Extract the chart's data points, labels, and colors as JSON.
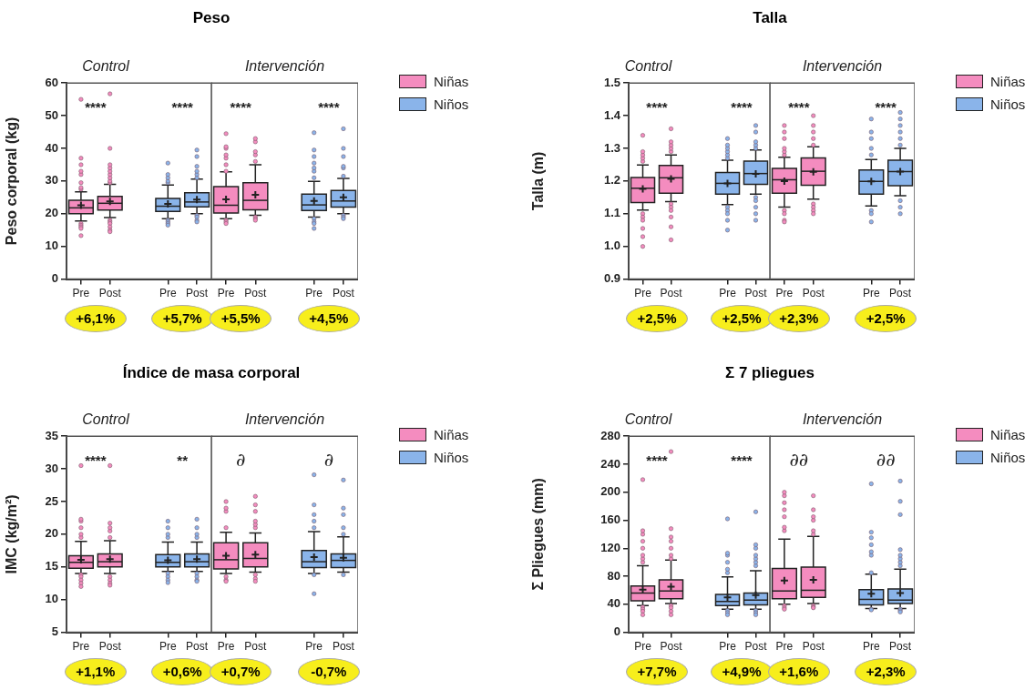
{
  "chart_data": [
    {
      "type": "box",
      "title": "Peso",
      "subtitle": "Control",
      "ylabel": "Peso corporal (kg)",
      "categories": [
        "Pre",
        "Post",
        null,
        "Pre",
        "Post"
      ],
      "ylim": [
        0,
        60
      ],
      "yticks": [
        0,
        10,
        20,
        30,
        40,
        50,
        60
      ],
      "annotations": [
        "****",
        "****",
        "+6,1%",
        "+5,7%"
      ],
      "series": [
        {
          "color": "#f48cbf",
          "boxes": [
            {
              "low": 17.8,
              "q1": 20.0,
              "median": 21.8,
              "q3": 24.1,
              "high": 26.7,
              "mean": 22.6,
              "outliers": [
                27.5,
                28,
                29.5,
                32,
                33,
                35,
                37,
                55,
                17,
                16.5,
                16,
                15.5,
                13.3
              ]
            },
            {
              "low": 18.8,
              "q1": 21.1,
              "median": 23.2,
              "q3": 25.3,
              "high": 29.0,
              "mean": 23.8,
              "outliers": [
                29.5,
                30,
                31,
                32,
                33,
                34,
                35,
                40,
                56.7,
                18,
                17.5,
                17,
                16,
                15,
                14.5
              ]
            },
            null,
            null,
            null
          ]
        },
        {
          "color": "#8ab4ea",
          "boxes": [
            null,
            null,
            null,
            {
              "low": 18.5,
              "q1": 20.7,
              "median": 22.3,
              "q3": 24.7,
              "high": 28.8,
              "mean": 23.0,
              "outliers": [
                29.5,
                30,
                31,
                32,
                35.5,
                18,
                17.5,
                17,
                16.5
              ]
            },
            {
              "low": 20.0,
              "q1": 22.1,
              "median": 23.6,
              "q3": 26.4,
              "high": 30.6,
              "mean": 24.3,
              "outliers": [
                31,
                32,
                33,
                34.5,
                37.5,
                39.5,
                19.5,
                19,
                18,
                17.5
              ]
            }
          ]
        }
      ]
    },
    {
      "type": "box",
      "subtitle": "Intervención",
      "categories": [
        "Pre",
        "Post",
        null,
        "Pre",
        "Post"
      ],
      "ylim": [
        0,
        60
      ],
      "tick_labels": "x",
      "legend": "right",
      "annotations": [
        "****",
        "****",
        "+5,5%",
        "+4,5%"
      ],
      "series": [
        {
          "name": "Niñas",
          "color": "#f48cbf",
          "boxes": [
            {
              "low": 18.5,
              "q1": 20.2,
              "median": 22.6,
              "q3": 28.3,
              "high": 32.8,
              "mean": 24.4,
              "outliers": [
                33,
                35,
                37,
                38,
                40,
                40.5,
                44.5,
                18,
                17.5,
                17
              ]
            },
            {
              "low": 19.5,
              "q1": 21.2,
              "median": 24.1,
              "q3": 29.5,
              "high": 35.0,
              "mean": 25.8,
              "outliers": [
                36,
                38,
                39,
                42,
                43,
                19,
                18.5,
                18
              ]
            },
            null,
            null,
            null
          ]
        },
        {
          "name": "Niños",
          "color": "#8ab4ea",
          "boxes": [
            null,
            null,
            null,
            {
              "low": 19.0,
              "q1": 21.0,
              "median": 22.7,
              "q3": 26.0,
              "high": 29.9,
              "mean": 23.9,
              "outliers": [
                31,
                33,
                34,
                35.5,
                37.5,
                39.5,
                44.8,
                18.5,
                17.5,
                17,
                15.5
              ]
            },
            {
              "low": 20.0,
              "q1": 22.0,
              "median": 23.9,
              "q3": 27.1,
              "high": 30.8,
              "mean": 25.0,
              "outliers": [
                31.5,
                34,
                34.5,
                37.5,
                40,
                46,
                19.5,
                19,
                18.5
              ]
            }
          ]
        }
      ]
    },
    {
      "type": "box",
      "title": "Talla",
      "subtitle": "Control",
      "ylabel": "Talla (m)",
      "categories": [
        "Pre",
        "Post",
        null,
        "Pre",
        "Post"
      ],
      "ylim": [
        0.9,
        1.5
      ],
      "yticks": [
        0.9,
        {
          "value": 1,
          "label": "1.0"
        },
        1.1,
        1.2,
        1.3,
        1.4,
        1.5
      ],
      "annotations": [
        "****",
        "****",
        "+2,5%",
        "+2,5%"
      ],
      "series": [
        {
          "color": "#f48cbf",
          "boxes": [
            {
              "low": 1.111,
              "q1": 1.134,
              "median": 1.178,
              "q3": 1.211,
              "high": 1.249,
              "mean": 1.176,
              "outliers": [
                1.26,
                1.27,
                1.28,
                1.29,
                1.34,
                1.1,
                1.09,
                1.08,
                1.055,
                1.03,
                1.0
              ]
            },
            {
              "low": 1.137,
              "q1": 1.163,
              "median": 1.21,
              "q3": 1.248,
              "high": 1.28,
              "mean": 1.207,
              "outliers": [
                1.29,
                1.3,
                1.31,
                1.32,
                1.36,
                1.13,
                1.12,
                1.11,
                1.09,
                1.06,
                1.02
              ]
            },
            null,
            null,
            null
          ]
        },
        {
          "color": "#8ab4ea",
          "boxes": [
            null,
            null,
            null,
            {
              "low": 1.128,
              "q1": 1.16,
              "median": 1.193,
              "q3": 1.226,
              "high": 1.264,
              "mean": 1.193,
              "outliers": [
                1.27,
                1.28,
                1.29,
                1.3,
                1.31,
                1.33,
                1.12,
                1.11,
                1.1,
                1.08,
                1.05
              ]
            },
            {
              "low": 1.16,
              "q1": 1.19,
              "median": 1.223,
              "q3": 1.261,
              "high": 1.295,
              "mean": 1.222,
              "outliers": [
                1.3,
                1.31,
                1.32,
                1.35,
                1.37,
                1.15,
                1.14,
                1.12,
                1.1,
                1.08
              ]
            }
          ]
        }
      ]
    },
    {
      "type": "box",
      "subtitle": "Intervención",
      "categories": [
        "Pre",
        "Post",
        null,
        "Pre",
        "Post"
      ],
      "ylim": [
        0.9,
        1.5
      ],
      "tick_labels": "x",
      "legend": "right",
      "annotations": [
        "****",
        "****",
        "+2,3%",
        "+2,5%"
      ],
      "series": [
        {
          "name": "Niñas",
          "color": "#f48cbf",
          "boxes": [
            {
              "low": 1.12,
              "q1": 1.163,
              "median": 1.204,
              "q3": 1.239,
              "high": 1.273,
              "mean": 1.2,
              "outliers": [
                1.28,
                1.29,
                1.3,
                1.33,
                1.35,
                1.37,
                1.11,
                1.1,
                1.08,
                1.075
              ]
            },
            {
              "low": 1.145,
              "q1": 1.187,
              "median": 1.23,
              "q3": 1.271,
              "high": 1.305,
              "mean": 1.228,
              "outliers": [
                1.31,
                1.33,
                1.35,
                1.37,
                1.4,
                1.13,
                1.12,
                1.11,
                1.1
              ]
            },
            null,
            null,
            null
          ]
        },
        {
          "name": "Niños",
          "color": "#8ab4ea",
          "boxes": [
            null,
            null,
            null,
            {
              "low": 1.124,
              "q1": 1.16,
              "median": 1.199,
              "q3": 1.234,
              "high": 1.266,
              "mean": 1.199,
              "outliers": [
                1.28,
                1.3,
                1.33,
                1.35,
                1.39,
                1.11,
                1.1,
                1.075
              ]
            },
            {
              "low": 1.155,
              "q1": 1.186,
              "median": 1.229,
              "q3": 1.264,
              "high": 1.3,
              "mean": 1.229,
              "outliers": [
                1.31,
                1.33,
                1.35,
                1.37,
                1.39,
                1.41,
                1.14,
                1.12,
                1.1
              ]
            }
          ]
        }
      ]
    },
    {
      "type": "box",
      "title": "Índice de masa corporal",
      "subtitle": "Control",
      "ylabel": "IMC (kg/m²)",
      "categories": [
        "Pre",
        "Post",
        null,
        "Pre",
        "Post"
      ],
      "ylim": [
        5,
        35
      ],
      "yticks": [
        5,
        10,
        15,
        20,
        25,
        30,
        35
      ],
      "annotations": [
        "****",
        "**",
        "+1,1%",
        "+0,6%"
      ],
      "series": [
        {
          "color": "#f48cbf",
          "boxes": [
            {
              "low": 14.0,
              "q1": 14.8,
              "median": 15.7,
              "q3": 16.7,
              "high": 18.9,
              "mean": 16.1,
              "outliers": [
                19.5,
                20,
                21,
                22,
                22.3,
                30.5,
                13.8,
                13.5,
                13,
                12.5,
                12
              ]
            },
            {
              "low": 14.0,
              "q1": 15.0,
              "median": 15.8,
              "q3": 17.0,
              "high": 19.0,
              "mean": 16.2,
              "outliers": [
                19.5,
                20.5,
                21,
                21.7,
                30.5,
                13.5,
                13,
                12.5,
                12.2
              ]
            },
            null,
            null,
            null
          ]
        },
        {
          "color": "#8ab4ea",
          "boxes": [
            null,
            null,
            null,
            {
              "low": 14.3,
              "q1": 15.0,
              "median": 15.7,
              "q3": 16.9,
              "high": 18.8,
              "mean": 16.0,
              "outliers": [
                19.5,
                20,
                21,
                22,
                14,
                13.5,
                13,
                12.6
              ]
            },
            {
              "low": 14.3,
              "q1": 15.0,
              "median": 15.8,
              "q3": 17.0,
              "high": 18.8,
              "mean": 16.2,
              "outliers": [
                19.5,
                20,
                21,
                22.3,
                14,
                13.5,
                13,
                12.8
              ]
            }
          ]
        }
      ]
    },
    {
      "type": "box",
      "subtitle": "Intervención",
      "categories": [
        "Pre",
        "Post",
        null,
        "Pre",
        "Post"
      ],
      "ylim": [
        5,
        35
      ],
      "tick_labels": "x",
      "legend": "right",
      "annotations": [
        "∂",
        "∂",
        "+0,7%",
        "-0,7%"
      ],
      "series": [
        {
          "name": "Niñas",
          "color": "#f48cbf",
          "boxes": [
            {
              "low": 14.0,
              "q1": 14.7,
              "median": 16.1,
              "q3": 18.7,
              "high": 20.3,
              "mean": 16.7,
              "outliers": [
                21,
                23.5,
                24,
                25,
                13.5,
                13,
                12.8
              ]
            },
            {
              "low": 14.2,
              "q1": 15.0,
              "median": 16.3,
              "q3": 18.7,
              "high": 20.2,
              "mean": 16.9,
              "outliers": [
                21,
                21.5,
                22,
                23.5,
                24.5,
                25.8,
                13.8,
                13.2,
                12.8
              ]
            },
            null,
            null,
            null
          ]
        },
        {
          "name": "Niños",
          "color": "#8ab4ea",
          "boxes": [
            null,
            null,
            null,
            {
              "low": 14.0,
              "q1": 14.9,
              "median": 15.8,
              "q3": 17.5,
              "high": 20.4,
              "mean": 16.5,
              "outliers": [
                21,
                22,
                23,
                24.5,
                29.1,
                13.8,
                10.9
              ]
            },
            {
              "low": 14.2,
              "q1": 14.9,
              "median": 16.0,
              "q3": 17.0,
              "high": 19.6,
              "mean": 16.4,
              "outliers": [
                20,
                21,
                23,
                24,
                28.3,
                13.8
              ]
            }
          ]
        }
      ]
    },
    {
      "type": "box",
      "title": "Σ 7 pliegues",
      "subtitle": "Control",
      "ylabel": "Σ Pliegues (mm)",
      "categories": [
        "Pre",
        "Post",
        null,
        "Pre",
        "Post"
      ],
      "ylim": [
        0,
        280
      ],
      "yticks": [
        0,
        40,
        80,
        120,
        160,
        200,
        240,
        280
      ],
      "annotations": [
        "****",
        "****",
        "+7,7%",
        "+4,9%"
      ],
      "series": [
        {
          "color": "#f48cbf",
          "boxes": [
            {
              "low": 38,
              "q1": 45,
              "median": 56,
              "q3": 66,
              "high": 95,
              "mean": 61,
              "outliers": [
                100,
                105,
                110,
                120,
                130,
                140,
                145,
                218,
                36,
                33,
                30,
                25
              ]
            },
            {
              "low": 41,
              "q1": 48,
              "median": 59,
              "q3": 75,
              "high": 103,
              "mean": 65,
              "outliers": [
                105,
                110,
                120,
                130,
                136,
                148,
                258,
                38,
                35,
                30,
                25
              ]
            },
            null,
            null,
            null
          ]
        },
        {
          "color": "#8ab4ea",
          "boxes": [
            null,
            null,
            null,
            {
              "low": 33,
              "q1": 38,
              "median": 44,
              "q3": 54,
              "high": 79,
              "mean": 50,
              "outliers": [
                85,
                90,
                100,
                110,
                113,
                162,
                31,
                28,
                25
              ]
            },
            {
              "low": 33,
              "q1": 39,
              "median": 46,
              "q3": 56,
              "high": 88,
              "mean": 53,
              "outliers": [
                95,
                100,
                105,
                110,
                120,
                125,
                172,
                31,
                28,
                25
              ]
            }
          ]
        }
      ]
    },
    {
      "type": "box",
      "subtitle": "Intervención",
      "categories": [
        "Pre",
        "Post",
        null,
        "Pre",
        "Post"
      ],
      "ylim": [
        0,
        280
      ],
      "tick_labels": "x",
      "legend": "right",
      "annotations": [
        "∂∂",
        "∂∂",
        "+1,6%",
        "+2,3%"
      ],
      "series": [
        {
          "name": "Niñas",
          "color": "#f48cbf",
          "boxes": [
            {
              "low": 40,
              "q1": 48,
              "median": 59,
              "q3": 91,
              "high": 133,
              "mean": 74,
              "outliers": [
                145,
                150,
                165,
                175,
                185,
                195,
                200,
                38,
                35,
                33
              ]
            },
            {
              "low": 41,
              "q1": 50,
              "median": 60,
              "q3": 93,
              "high": 137,
              "mean": 75,
              "outliers": [
                140,
                145,
                160,
                165,
                175,
                195,
                38,
                36,
                35
              ]
            },
            null,
            null,
            null
          ]
        },
        {
          "name": "Niños",
          "color": "#8ab4ea",
          "boxes": [
            null,
            null,
            null,
            {
              "low": 34,
              "q1": 39,
              "median": 47,
              "q3": 61,
              "high": 83,
              "mean": 55,
              "outliers": [
                85,
                110,
                115,
                125,
                135,
                143,
                212,
                33,
                32
              ]
            },
            {
              "low": 34,
              "q1": 41,
              "median": 46,
              "q3": 62,
              "high": 90,
              "mean": 56,
              "outliers": [
                95,
                100,
                105,
                110,
                118,
                168,
                187,
                216,
                33,
                31,
                29
              ]
            }
          ]
        }
      ]
    }
  ]
}
